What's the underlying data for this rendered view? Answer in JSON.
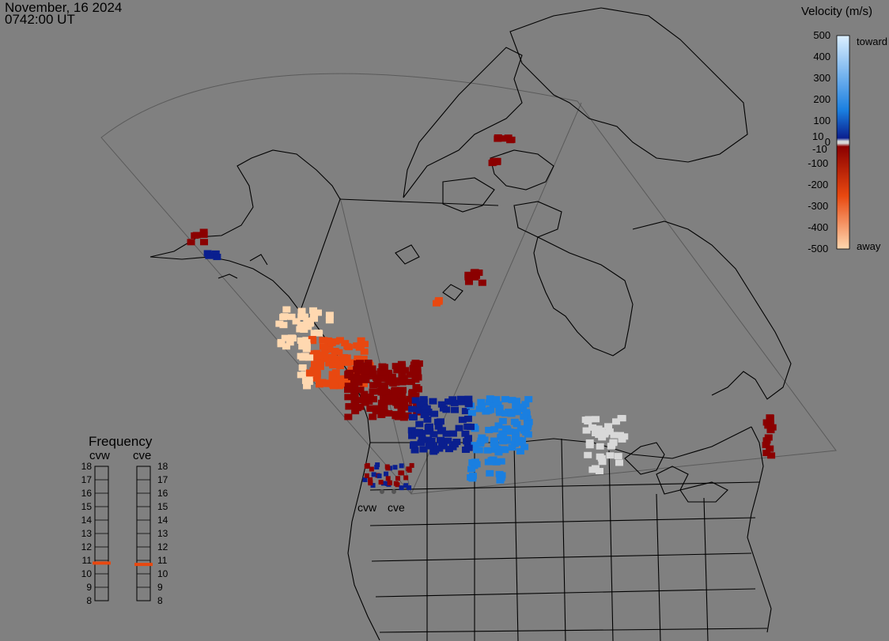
{
  "header": {
    "date": "November, 16 2024",
    "time": "0742:00 UT"
  },
  "velocity_legend": {
    "title": "Velocity (m/s)",
    "ticks": [
      "500",
      "400",
      "300",
      "200",
      "100",
      "0",
      "-100",
      "-200",
      "-300",
      "-400",
      "-500"
    ],
    "tick_values": [
      500,
      400,
      300,
      200,
      100,
      0,
      -100,
      -200,
      -300,
      -400,
      -500
    ],
    "inner_ticks": [
      "10",
      "-10"
    ],
    "toward_label": "toward",
    "away_label": "away",
    "colors": {
      "toward_light": "#dcefff",
      "toward_mid": "#1a7fe0",
      "toward_dark": "#0a1f8f",
      "zero_band": "#d8d8d8",
      "away_dark": "#8b0000",
      "away_mid": "#e84810",
      "away_light": "#ffd8b0"
    }
  },
  "frequency_panel": {
    "title": "Frequency",
    "radars": [
      {
        "name": "cvw",
        "frequency_mhz": 10.8
      },
      {
        "name": "cve",
        "frequency_mhz": 10.7
      }
    ],
    "scale": [
      "18",
      "17",
      "16",
      "15",
      "14",
      "13",
      "12",
      "11",
      "10",
      "9",
      "8"
    ],
    "marker_color": "#e84810"
  },
  "map": {
    "background": "#808080",
    "coastline_color": "#000000",
    "fov_color": "#5a5a5a",
    "site_labels": [
      "cvw",
      "cve"
    ]
  }
}
